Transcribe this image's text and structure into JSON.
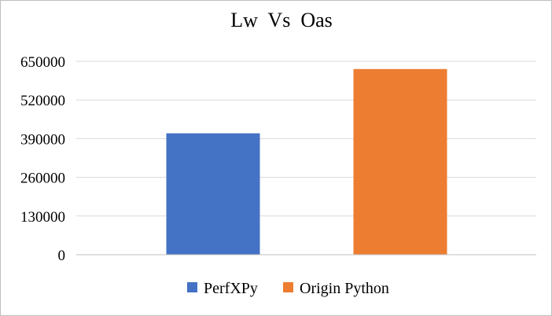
{
  "chart_data": {
    "type": "bar",
    "title": "Lw  Vs  Oas",
    "xlabel": "",
    "ylabel": "",
    "ylim": [
      0,
      650000
    ],
    "yticks": [
      0,
      130000,
      260000,
      390000,
      520000,
      650000
    ],
    "grid": true,
    "legend_position": "bottom",
    "series": [
      {
        "name": "PerfXPy",
        "value": 408000,
        "color": "#4472c4"
      },
      {
        "name": "Origin Python",
        "value": 624000,
        "color": "#ed7d31"
      }
    ]
  }
}
